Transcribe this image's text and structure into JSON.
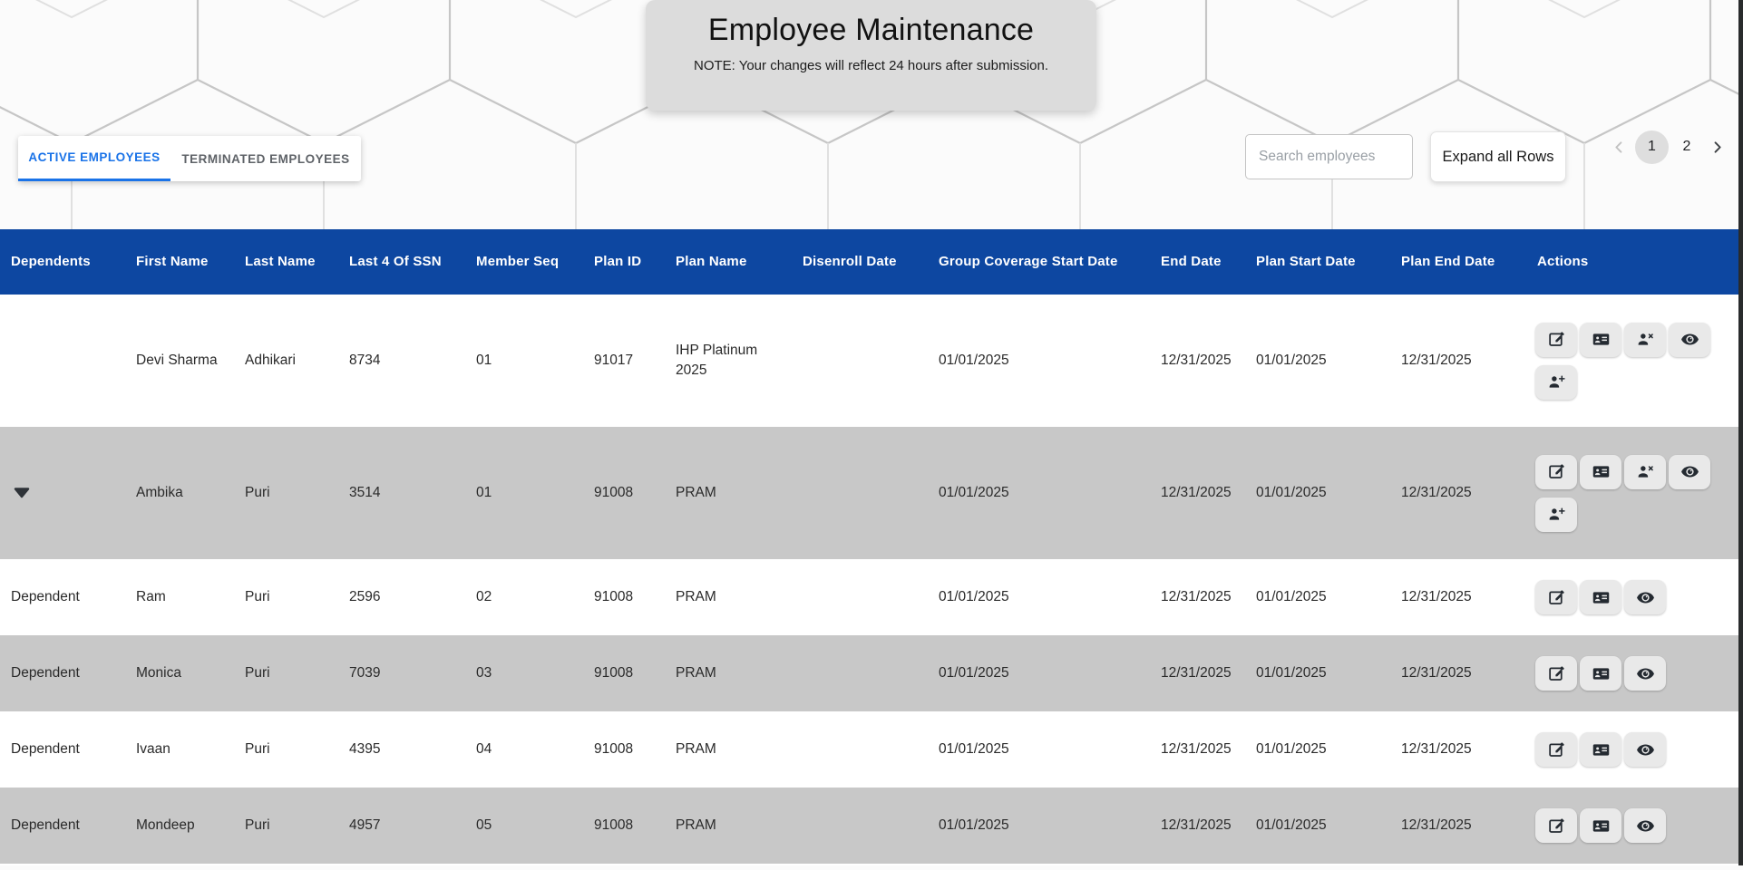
{
  "page": {
    "title": "Employee Maintenance",
    "note": "NOTE: Your changes will reflect 24 hours after submission."
  },
  "tabs": [
    {
      "label": "ACTIVE EMPLOYEES",
      "active": true
    },
    {
      "label": "TERMINATED EMPLOYEES",
      "active": false
    }
  ],
  "controls": {
    "search_placeholder": "Search employees",
    "expand_button_label": "Expand all Rows"
  },
  "pagination": {
    "prev_icon": "chevron-left-icon",
    "next_icon": "chevron-right-icon",
    "pages": [
      "1",
      "2"
    ],
    "current_page": "1"
  },
  "table": {
    "columns": [
      "Dependents",
      "First Name",
      "Last Name",
      "Last 4 Of SSN",
      "Member Seq",
      "Plan ID",
      "Plan Name",
      "Disenroll Date",
      "Group Coverage Start Date",
      "End Date",
      "Plan Start Date",
      "Plan End Date",
      "Actions"
    ],
    "rows": [
      {
        "row_type": "employee",
        "shaded": false,
        "has_dependents_toggle": false,
        "dependents": "",
        "first_name": "Devi Sharma",
        "last_name": "Adhikari",
        "last4_ssn": "8734",
        "member_seq": "01",
        "plan_id": "91017",
        "plan_name": "IHP Platinum 2025",
        "disenroll_date": "",
        "group_coverage_start_date": "01/01/2025",
        "end_date": "12/31/2025",
        "plan_start_date": "01/01/2025",
        "plan_end_date": "12/31/2025",
        "actions": [
          "edit-icon",
          "id-card-icon",
          "person-remove-icon",
          "eye-icon",
          "person-add-icon"
        ]
      },
      {
        "row_type": "employee",
        "shaded": true,
        "has_dependents_toggle": true,
        "dependents": "",
        "first_name": "Ambika",
        "last_name": "Puri",
        "last4_ssn": "3514",
        "member_seq": "01",
        "plan_id": "91008",
        "plan_name": "PRAM",
        "disenroll_date": "",
        "group_coverage_start_date": "01/01/2025",
        "end_date": "12/31/2025",
        "plan_start_date": "01/01/2025",
        "plan_end_date": "12/31/2025",
        "actions": [
          "edit-icon",
          "id-card-icon",
          "person-remove-icon",
          "eye-icon",
          "person-add-icon"
        ]
      },
      {
        "row_type": "dependent",
        "shaded": false,
        "has_dependents_toggle": false,
        "dependents": "Dependent",
        "first_name": "Ram",
        "last_name": "Puri",
        "last4_ssn": "2596",
        "member_seq": "02",
        "plan_id": "91008",
        "plan_name": "PRAM",
        "disenroll_date": "",
        "group_coverage_start_date": "01/01/2025",
        "end_date": "12/31/2025",
        "plan_start_date": "01/01/2025",
        "plan_end_date": "12/31/2025",
        "actions": [
          "edit-icon",
          "id-card-icon",
          "eye-icon"
        ]
      },
      {
        "row_type": "dependent",
        "shaded": true,
        "has_dependents_toggle": false,
        "dependents": "Dependent",
        "first_name": "Monica",
        "last_name": "Puri",
        "last4_ssn": "7039",
        "member_seq": "03",
        "plan_id": "91008",
        "plan_name": "PRAM",
        "disenroll_date": "",
        "group_coverage_start_date": "01/01/2025",
        "end_date": "12/31/2025",
        "plan_start_date": "01/01/2025",
        "plan_end_date": "12/31/2025",
        "actions": [
          "edit-icon",
          "id-card-icon",
          "eye-icon"
        ]
      },
      {
        "row_type": "dependent",
        "shaded": false,
        "has_dependents_toggle": false,
        "dependents": "Dependent",
        "first_name": "Ivaan",
        "last_name": "Puri",
        "last4_ssn": "4395",
        "member_seq": "04",
        "plan_id": "91008",
        "plan_name": "PRAM",
        "disenroll_date": "",
        "group_coverage_start_date": "01/01/2025",
        "end_date": "12/31/2025",
        "plan_start_date": "01/01/2025",
        "plan_end_date": "12/31/2025",
        "actions": [
          "edit-icon",
          "id-card-icon",
          "eye-icon"
        ]
      },
      {
        "row_type": "dependent",
        "shaded": true,
        "has_dependents_toggle": false,
        "dependents": "Dependent",
        "first_name": "Mondeep",
        "last_name": "Puri",
        "last4_ssn": "4957",
        "member_seq": "05",
        "plan_id": "91008",
        "plan_name": "PRAM",
        "disenroll_date": "",
        "group_coverage_start_date": "01/01/2025",
        "end_date": "12/31/2025",
        "plan_start_date": "01/01/2025",
        "plan_end_date": "12/31/2025",
        "actions": [
          "edit-icon",
          "id-card-icon",
          "eye-icon"
        ]
      }
    ]
  },
  "icons": {
    "expand_row": "arrow-drop-down-icon"
  },
  "colors": {
    "header_blue": "#0d47a1",
    "tab_active_blue": "#1a73e8",
    "row_shaded_gray": "#c8c8c8",
    "title_card_gray": "#dcdcdc",
    "icon_dark": "#242a31",
    "edge_strip_dark": "#292b2c"
  }
}
